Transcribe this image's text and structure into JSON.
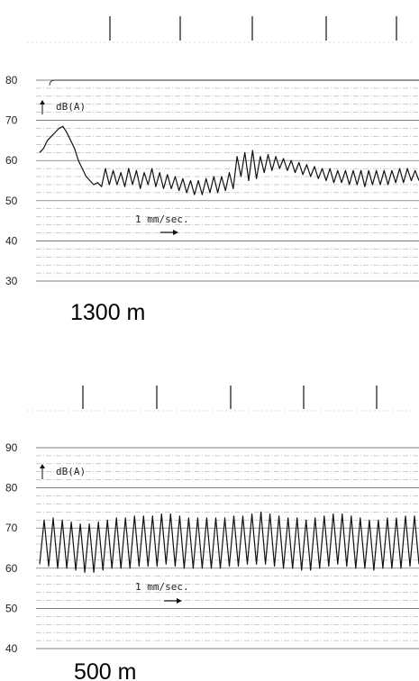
{
  "chart_data": [
    {
      "type": "line",
      "title": "",
      "caption": "1300 m",
      "ylabel": "dB(A)",
      "ylim": [
        30,
        80
      ],
      "yticks": [
        80,
        70,
        60,
        50,
        40,
        30
      ],
      "speed_label": "1 mm/sec.",
      "markers": 5,
      "series": [
        {
          "values": [
            62,
            63,
            65,
            66,
            67,
            68,
            68.5,
            67,
            65,
            63,
            60,
            58,
            56,
            55,
            54,
            54.5,
            53.5,
            58,
            54,
            57.5,
            54,
            57,
            53.5,
            58,
            54,
            57.5,
            53,
            57,
            54,
            58,
            53.5,
            57,
            53,
            56.5,
            53,
            56,
            52.5,
            55.5,
            52,
            55,
            51.5,
            55,
            51.5,
            55.5,
            52,
            56,
            52,
            56,
            52.5,
            57,
            53,
            61,
            56,
            62,
            55,
            62.5,
            55.5,
            61,
            57,
            61.5,
            57.5,
            61,
            58,
            60.5,
            57.5,
            60,
            57,
            59.5,
            56.5,
            59,
            56,
            58.5,
            55.5,
            58,
            55,
            58,
            54.5,
            57.5,
            54.5,
            57.5,
            54,
            57.5,
            54,
            57.5,
            53.5,
            57.5,
            54,
            57.5,
            54,
            57.5,
            54,
            57.5,
            54.5,
            58,
            54.5,
            58,
            55,
            57.5,
            55
          ]
        }
      ]
    },
    {
      "type": "line",
      "title": "",
      "caption": "500 m",
      "ylabel": "dB(A)",
      "ylim": [
        40,
        90
      ],
      "yticks": [
        90,
        80,
        70,
        60,
        50,
        40
      ],
      "speed_label": "1 mm/sec.",
      "markers": 5,
      "series": [
        {
          "values": [
            61,
            72,
            60.5,
            72.5,
            60,
            72,
            60,
            71.5,
            59.5,
            71,
            59,
            71,
            59,
            71.5,
            59.5,
            72,
            60,
            72.5,
            60,
            72.5,
            60,
            73,
            60.5,
            73,
            60.5,
            73,
            60.5,
            73.5,
            61,
            73.5,
            60.5,
            73,
            60,
            72.5,
            60,
            72.5,
            60,
            72.5,
            60,
            72.5,
            60,
            72.5,
            60.5,
            73,
            60.5,
            73,
            61,
            73.5,
            61,
            74,
            61,
            73.5,
            60.5,
            73,
            60,
            72.5,
            60,
            72.5,
            59.5,
            72,
            59.5,
            72.5,
            60,
            73,
            60.5,
            73.5,
            61,
            73.5,
            60.5,
            73,
            60,
            72.5,
            60,
            72,
            59.5,
            72,
            60,
            72.5,
            60,
            72.5,
            60,
            73,
            60.5,
            73,
            61
          ]
        }
      ]
    }
  ]
}
